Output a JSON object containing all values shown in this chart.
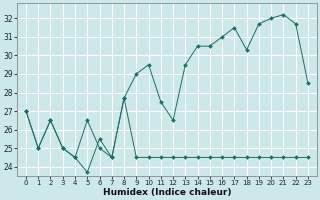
{
  "xlabel": "Humidex (Indice chaleur)",
  "background_color": "#cce8e8",
  "grid_color": "#ffffff",
  "line_color": "#1a6e6a",
  "x_values": [
    0,
    1,
    2,
    3,
    4,
    5,
    6,
    7,
    8,
    9,
    10,
    11,
    12,
    13,
    14,
    15,
    16,
    17,
    18,
    19,
    20,
    21,
    22,
    23
  ],
  "line1_y": [
    27.0,
    25.0,
    26.5,
    25.0,
    24.5,
    23.7,
    25.5,
    24.5,
    27.7,
    24.5,
    24.5,
    24.5,
    24.5,
    24.5,
    24.5,
    24.5,
    24.5,
    24.5,
    24.5,
    24.5,
    24.5,
    24.5,
    24.5,
    24.5
  ],
  "line2_y": [
    27.0,
    25.0,
    26.5,
    25.0,
    24.5,
    26.5,
    25.0,
    24.5,
    27.7,
    29.0,
    29.5,
    27.5,
    26.5,
    29.5,
    30.5,
    30.5,
    31.0,
    31.5,
    30.3,
    31.7,
    32.0,
    32.2,
    31.7,
    28.5
  ],
  "ylim": [
    23.5,
    32.8
  ],
  "yticks": [
    24,
    25,
    26,
    27,
    28,
    29,
    30,
    31,
    32
  ],
  "xtick_labels": [
    "0",
    "1",
    "2",
    "3",
    "4",
    "5",
    "6",
    "7",
    "8",
    "9",
    "10",
    "11",
    "12",
    "13",
    "14",
    "15",
    "16",
    "17",
    "18",
    "19",
    "20",
    "21",
    "22",
    "23"
  ]
}
